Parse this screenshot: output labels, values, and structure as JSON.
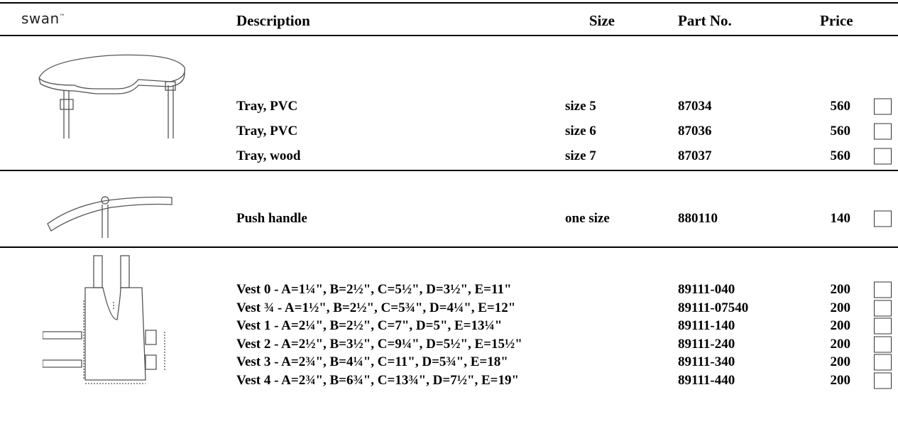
{
  "header": {
    "logo": "swan",
    "trademark": "™",
    "columns": [
      "Description",
      "Size",
      "Part No.",
      "Price"
    ]
  },
  "sections": [
    {
      "rows": [
        {
          "description": "Tray, PVC",
          "size": "size 5",
          "part_no": "87034",
          "price": 560
        },
        {
          "description": "Tray, PVC",
          "size": "size 6",
          "part_no": "87036",
          "price": 560
        },
        {
          "description": "Tray, wood",
          "size": "size 7",
          "part_no": "87037",
          "price": 560
        }
      ]
    },
    {
      "rows": [
        {
          "description": "Push handle",
          "size": "one size",
          "part_no": "880110",
          "price": 140
        }
      ]
    },
    {
      "rows": [
        {
          "description": "Vest 0 - A=1¼\", B=2½\", C=5½\", D=3½\", E=11\"",
          "part_no": "89111-040",
          "price": 200
        },
        {
          "description": "Vest ¾ - A=1½\", B=2½\", C=5¾\", D=4¼\", E=12\"",
          "part_no": "89111-07540",
          "price": 200
        },
        {
          "description": "Vest 1 - A=2¼\", B=2½\", C=7\", D=5\", E=13¼\"",
          "part_no": "89111-140",
          "price": 200
        },
        {
          "description": "Vest 2 - A=2½\", B=3½\", C=9¼\", D=5½\", E=15½\"",
          "part_no": "89111-240",
          "price": 200
        },
        {
          "description": "Vest 3 - A=2¾\", B=4¼\", C=11\", D=5¾\", E=18\"",
          "part_no": "89111-340",
          "price": 200
        },
        {
          "description": "Vest 4 - A=2¾\", B=6¾\", C=13¾\", D=7½\", E=19\"",
          "part_no": "89111-440",
          "price": 200
        }
      ]
    }
  ]
}
